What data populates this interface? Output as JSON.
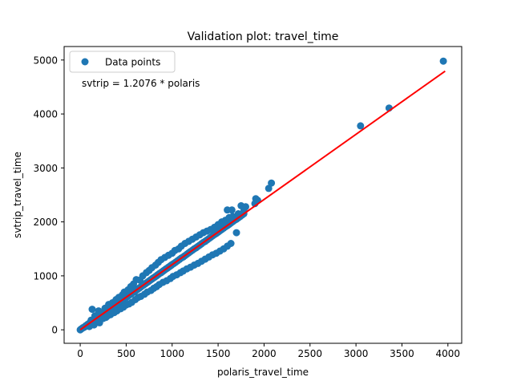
{
  "chart_data": {
    "type": "scatter",
    "title": "Validation plot: travel_time",
    "xlabel": "polaris_travel_time",
    "ylabel": "svtrip_travel_time",
    "xlim": [
      -175,
      4150
    ],
    "ylim": [
      -250,
      5250
    ],
    "xticks": [
      0,
      500,
      1000,
      1500,
      2000,
      2500,
      3000,
      3500,
      4000
    ],
    "yticks": [
      0,
      1000,
      2000,
      3000,
      4000,
      5000
    ],
    "grid": false,
    "legend": {
      "placement": "upper-left",
      "entries": [
        "Data points"
      ]
    },
    "annotation": {
      "text": "svtrip = 1.2076 * polaris",
      "color": "#ff0000"
    },
    "point_color": "#1f77b4",
    "fit_color": "#ff0000",
    "fit": {
      "slope": 1.2076,
      "x_range": [
        0,
        3970
      ]
    },
    "series": [
      {
        "name": "Data points",
        "points": [
          [
            0,
            0
          ],
          [
            10,
            15
          ],
          [
            20,
            25
          ],
          [
            30,
            40
          ],
          [
            40,
            45
          ],
          [
            50,
            55
          ],
          [
            60,
            75
          ],
          [
            70,
            80
          ],
          [
            80,
            100
          ],
          [
            90,
            110
          ],
          [
            100,
            120
          ],
          [
            110,
            140
          ],
          [
            120,
            150
          ],
          [
            130,
            160
          ],
          [
            140,
            170
          ],
          [
            150,
            185
          ],
          [
            160,
            200
          ],
          [
            170,
            210
          ],
          [
            180,
            220
          ],
          [
            190,
            230
          ],
          [
            200,
            240
          ],
          [
            210,
            255
          ],
          [
            220,
            265
          ],
          [
            230,
            280
          ],
          [
            240,
            290
          ],
          [
            250,
            300
          ],
          [
            260,
            315
          ],
          [
            270,
            325
          ],
          [
            280,
            340
          ],
          [
            290,
            350
          ],
          [
            300,
            360
          ],
          [
            310,
            375
          ],
          [
            320,
            385
          ],
          [
            330,
            400
          ],
          [
            340,
            410
          ],
          [
            350,
            420
          ],
          [
            360,
            435
          ],
          [
            370,
            445
          ],
          [
            380,
            460
          ],
          [
            390,
            470
          ],
          [
            400,
            480
          ],
          [
            410,
            495
          ],
          [
            420,
            505
          ],
          [
            430,
            520
          ],
          [
            440,
            530
          ],
          [
            450,
            540
          ],
          [
            460,
            555
          ],
          [
            470,
            565
          ],
          [
            480,
            580
          ],
          [
            490,
            590
          ],
          [
            500,
            600
          ],
          [
            510,
            615
          ],
          [
            520,
            625
          ],
          [
            530,
            640
          ],
          [
            540,
            650
          ],
          [
            550,
            660
          ],
          [
            560,
            675
          ],
          [
            570,
            690
          ],
          [
            580,
            700
          ],
          [
            590,
            710
          ],
          [
            600,
            720
          ],
          [
            610,
            735
          ],
          [
            620,
            745
          ],
          [
            630,
            760
          ],
          [
            640,
            770
          ],
          [
            650,
            785
          ],
          [
            660,
            795
          ],
          [
            670,
            810
          ],
          [
            680,
            820
          ],
          [
            690,
            830
          ],
          [
            700,
            845
          ],
          [
            710,
            855
          ],
          [
            720,
            870
          ],
          [
            730,
            880
          ],
          [
            740,
            890
          ],
          [
            750,
            905
          ],
          [
            760,
            915
          ],
          [
            770,
            930
          ],
          [
            780,
            940
          ],
          [
            790,
            955
          ],
          [
            800,
            965
          ],
          [
            810,
            975
          ],
          [
            820,
            990
          ],
          [
            830,
            1000
          ],
          [
            840,
            1015
          ],
          [
            850,
            1025
          ],
          [
            860,
            1040
          ],
          [
            870,
            1050
          ],
          [
            880,
            1060
          ],
          [
            890,
            1075
          ],
          [
            900,
            1085
          ],
          [
            910,
            1100
          ],
          [
            920,
            1110
          ],
          [
            930,
            1125
          ],
          [
            940,
            1135
          ],
          [
            950,
            1145
          ],
          [
            960,
            1160
          ],
          [
            970,
            1170
          ],
          [
            980,
            1185
          ],
          [
            990,
            1195
          ],
          [
            1000,
            1210
          ],
          [
            1020,
            1230
          ],
          [
            1040,
            1255
          ],
          [
            1060,
            1280
          ],
          [
            1080,
            1305
          ],
          [
            1100,
            1330
          ],
          [
            1120,
            1350
          ],
          [
            1140,
            1375
          ],
          [
            1160,
            1400
          ],
          [
            1180,
            1425
          ],
          [
            1200,
            1450
          ],
          [
            1220,
            1475
          ],
          [
            1240,
            1500
          ],
          [
            1260,
            1520
          ],
          [
            1280,
            1545
          ],
          [
            1300,
            1570
          ],
          [
            1320,
            1595
          ],
          [
            1340,
            1620
          ],
          [
            1360,
            1640
          ],
          [
            1380,
            1665
          ],
          [
            1400,
            1690
          ],
          [
            1420,
            1715
          ],
          [
            1440,
            1740
          ],
          [
            1460,
            1765
          ],
          [
            1480,
            1785
          ],
          [
            1500,
            1810
          ],
          [
            1520,
            1835
          ],
          [
            1540,
            1860
          ],
          [
            1560,
            1885
          ],
          [
            1580,
            1910
          ],
          [
            1600,
            1930
          ],
          [
            1620,
            1955
          ],
          [
            1640,
            1980
          ],
          [
            1660,
            2005
          ],
          [
            1680,
            2030
          ],
          [
            1700,
            2050
          ],
          [
            1720,
            2075
          ],
          [
            1740,
            2100
          ],
          [
            1760,
            2125
          ],
          [
            1780,
            2150
          ],
          [
            100,
            60
          ],
          [
            120,
            180
          ],
          [
            130,
            380
          ],
          [
            150,
            90
          ],
          [
            160,
            260
          ],
          [
            180,
            150
          ],
          [
            200,
            350
          ],
          [
            210,
            130
          ],
          [
            220,
            290
          ],
          [
            250,
            210
          ],
          [
            270,
            400
          ],
          [
            280,
            230
          ],
          [
            300,
            260
          ],
          [
            310,
            470
          ],
          [
            330,
            280
          ],
          [
            350,
            500
          ],
          [
            370,
            320
          ],
          [
            390,
            560
          ],
          [
            400,
            350
          ],
          [
            420,
            600
          ],
          [
            440,
            390
          ],
          [
            460,
            650
          ],
          [
            470,
            420
          ],
          [
            480,
            700
          ],
          [
            500,
            460
          ],
          [
            520,
            740
          ],
          [
            530,
            480
          ],
          [
            550,
            800
          ],
          [
            560,
            510
          ],
          [
            580,
            850
          ],
          [
            600,
            560
          ],
          [
            610,
            930
          ],
          [
            630,
            600
          ],
          [
            650,
            920
          ],
          [
            660,
            620
          ],
          [
            680,
            1000
          ],
          [
            700,
            660
          ],
          [
            720,
            1060
          ],
          [
            730,
            700
          ],
          [
            750,
            1100
          ],
          [
            770,
            730
          ],
          [
            780,
            1150
          ],
          [
            800,
            770
          ],
          [
            820,
            1200
          ],
          [
            830,
            800
          ],
          [
            850,
            1250
          ],
          [
            860,
            840
          ],
          [
            880,
            1300
          ],
          [
            900,
            880
          ],
          [
            920,
            1340
          ],
          [
            940,
            910
          ],
          [
            960,
            1380
          ],
          [
            980,
            950
          ],
          [
            1000,
            1420
          ],
          [
            1010,
            990
          ],
          [
            1030,
            1470
          ],
          [
            1050,
            1020
          ],
          [
            1070,
            1500
          ],
          [
            1090,
            1060
          ],
          [
            1100,
            1550
          ],
          [
            1120,
            1090
          ],
          [
            1140,
            1600
          ],
          [
            1160,
            1130
          ],
          [
            1180,
            1640
          ],
          [
            1200,
            1160
          ],
          [
            1220,
            1680
          ],
          [
            1240,
            1200
          ],
          [
            1260,
            1720
          ],
          [
            1280,
            1230
          ],
          [
            1300,
            1760
          ],
          [
            1320,
            1270
          ],
          [
            1340,
            1800
          ],
          [
            1360,
            1310
          ],
          [
            1380,
            1830
          ],
          [
            1400,
            1350
          ],
          [
            1420,
            1860
          ],
          [
            1440,
            1390
          ],
          [
            1460,
            1900
          ],
          [
            1480,
            1420
          ],
          [
            1500,
            1950
          ],
          [
            1520,
            1460
          ],
          [
            1540,
            2000
          ],
          [
            1560,
            1500
          ],
          [
            1580,
            2030
          ],
          [
            1600,
            1550
          ],
          [
            1620,
            2080
          ],
          [
            1640,
            1600
          ],
          [
            1660,
            2100
          ],
          [
            1700,
            1800
          ],
          [
            1720,
            2150
          ],
          [
            1600,
            2220
          ],
          [
            1650,
            2220
          ],
          [
            1750,
            2300
          ],
          [
            1780,
            2200
          ],
          [
            1800,
            2280
          ],
          [
            1900,
            2340
          ],
          [
            1910,
            2430
          ],
          [
            1930,
            2400
          ],
          [
            2050,
            2620
          ],
          [
            2080,
            2720
          ],
          [
            3050,
            3780
          ],
          [
            3360,
            4110
          ],
          [
            3950,
            4980
          ]
        ]
      }
    ]
  }
}
